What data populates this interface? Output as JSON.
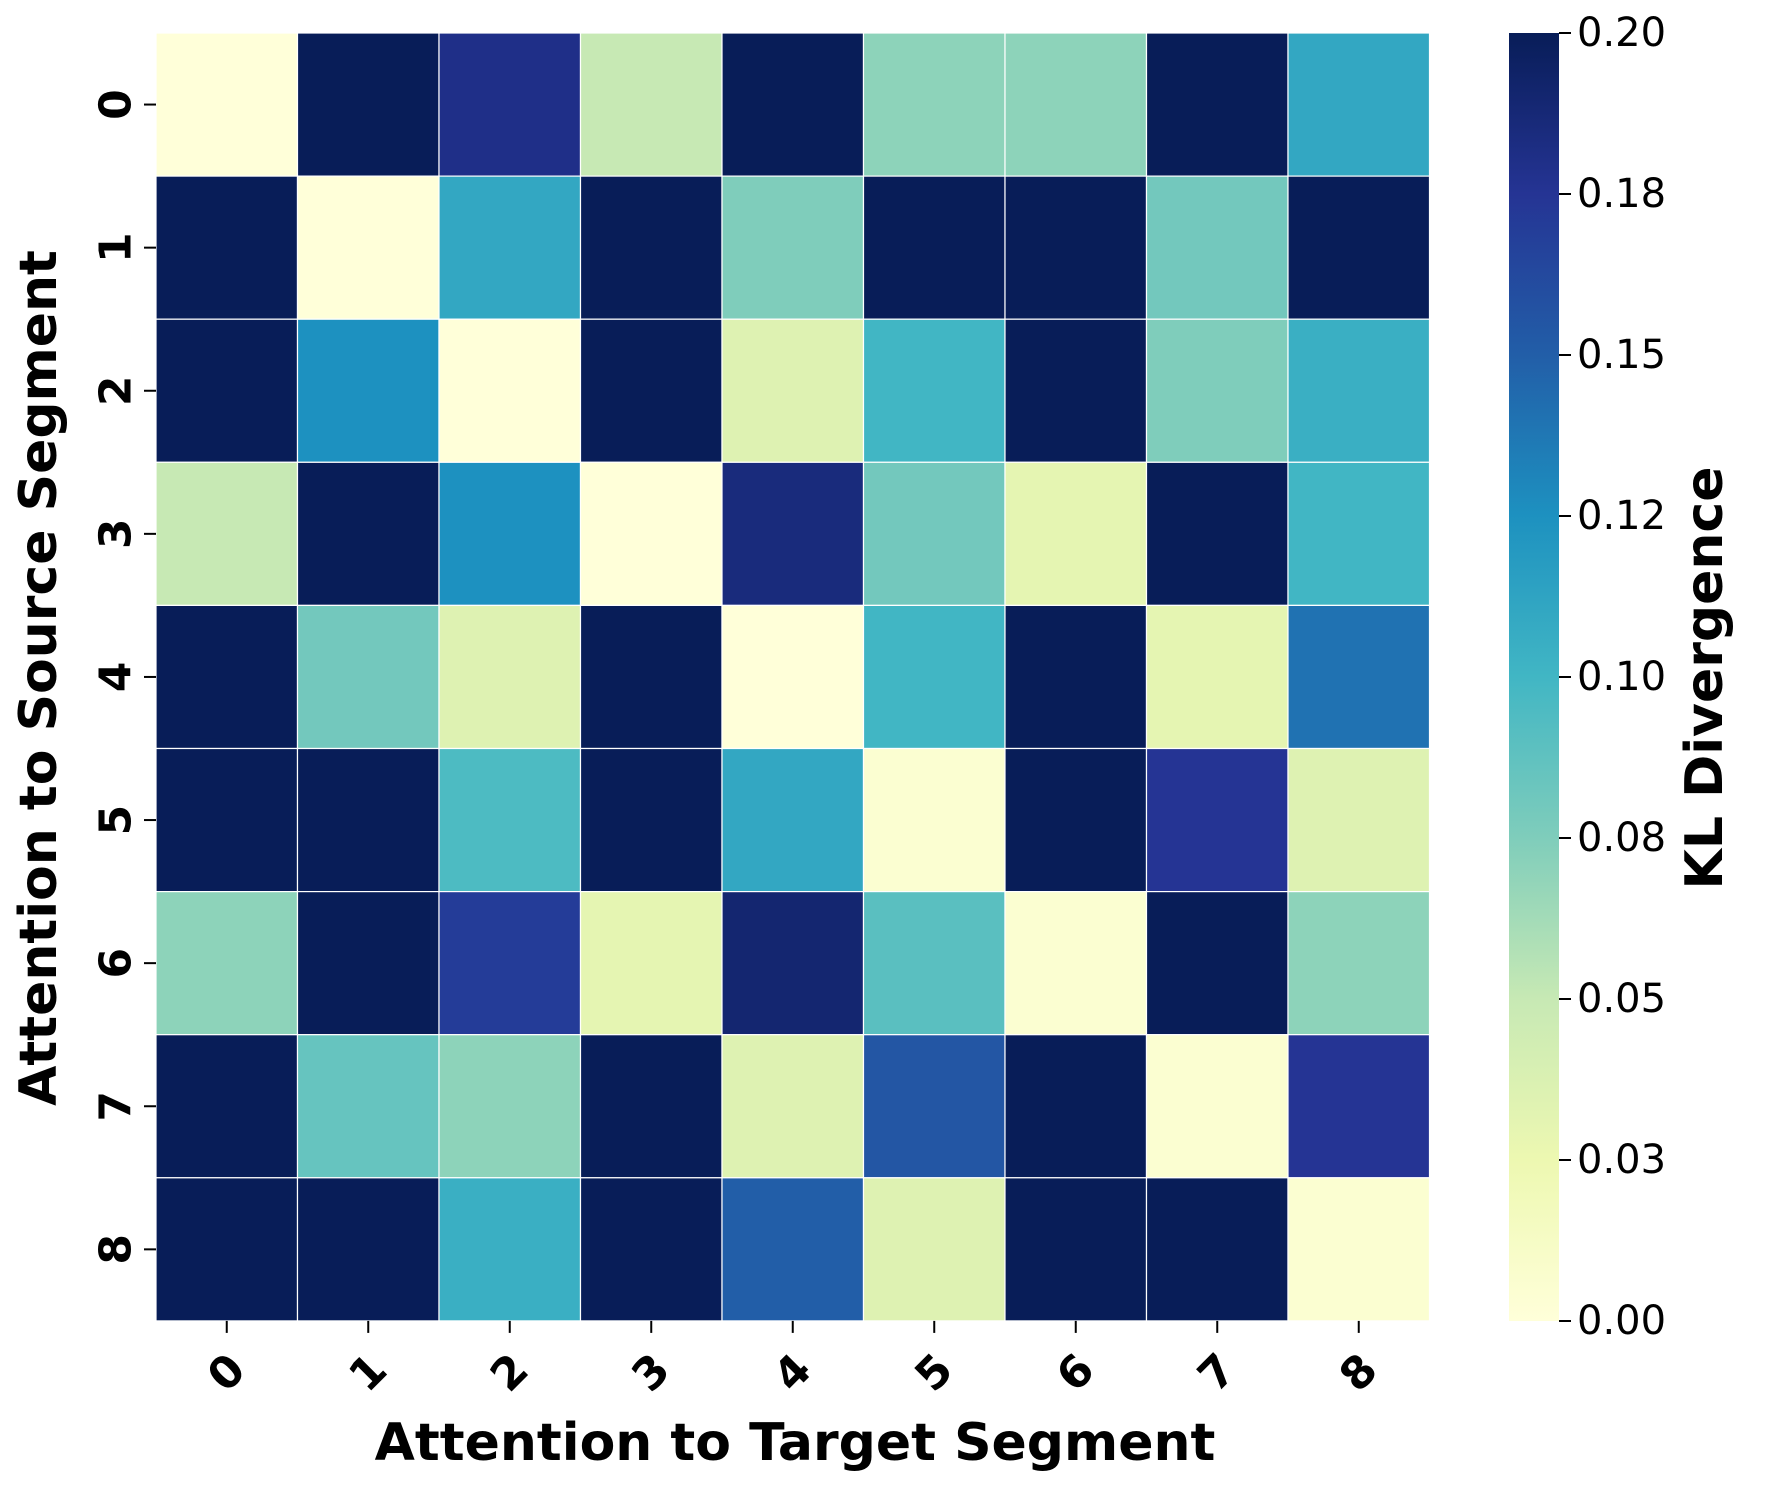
{
  "chart_data": {
    "type": "heatmap",
    "title": "",
    "xlabel": "Attention to Target Segment",
    "ylabel": "Attention to Source Segment",
    "x_categories": [
      "0",
      "1",
      "2",
      "3",
      "4",
      "5",
      "6",
      "7",
      "8"
    ],
    "y_categories": [
      "0",
      "1",
      "2",
      "3",
      "4",
      "5",
      "6",
      "7",
      "8"
    ],
    "values": [
      [
        0.0,
        0.2,
        0.18,
        0.05,
        0.2,
        0.07,
        0.07,
        0.2,
        0.11
      ],
      [
        0.2,
        0.0,
        0.11,
        0.2,
        0.075,
        0.2,
        0.2,
        0.08,
        0.2
      ],
      [
        0.2,
        0.125,
        0.0,
        0.2,
        0.035,
        0.1,
        0.2,
        0.075,
        0.105
      ],
      [
        0.05,
        0.2,
        0.125,
        0.0,
        0.185,
        0.08,
        0.03,
        0.2,
        0.1
      ],
      [
        0.2,
        0.08,
        0.035,
        0.2,
        0.0,
        0.1,
        0.2,
        0.03,
        0.14
      ],
      [
        0.2,
        0.2,
        0.095,
        0.2,
        0.11,
        0.005,
        0.2,
        0.175,
        0.035
      ],
      [
        0.07,
        0.2,
        0.17,
        0.03,
        0.19,
        0.09,
        0.005,
        0.2,
        0.07
      ],
      [
        0.2,
        0.085,
        0.07,
        0.2,
        0.035,
        0.155,
        0.2,
        0.005,
        0.175
      ],
      [
        0.2,
        0.2,
        0.105,
        0.2,
        0.15,
        0.035,
        0.2,
        0.2,
        0.005
      ]
    ],
    "colorbar": {
      "label": "KL Divergence",
      "min": 0.0,
      "max": 0.2,
      "ticks": [
        0.0,
        0.025,
        0.05,
        0.075,
        0.1,
        0.125,
        0.15,
        0.175,
        0.2
      ],
      "tick_labels": [
        "0.00",
        "0.03",
        "0.05",
        "0.08",
        "0.10",
        "0.12",
        "0.15",
        "0.18",
        "0.20"
      ],
      "colormap": "YlGnBu",
      "colormap_stops": [
        "#ffffd9",
        "#edf8b1",
        "#c7e9b4",
        "#7fcdbb",
        "#41b6c4",
        "#1d91c0",
        "#225ea8",
        "#253494",
        "#081d58"
      ]
    },
    "grid": true,
    "legend": "right"
  }
}
